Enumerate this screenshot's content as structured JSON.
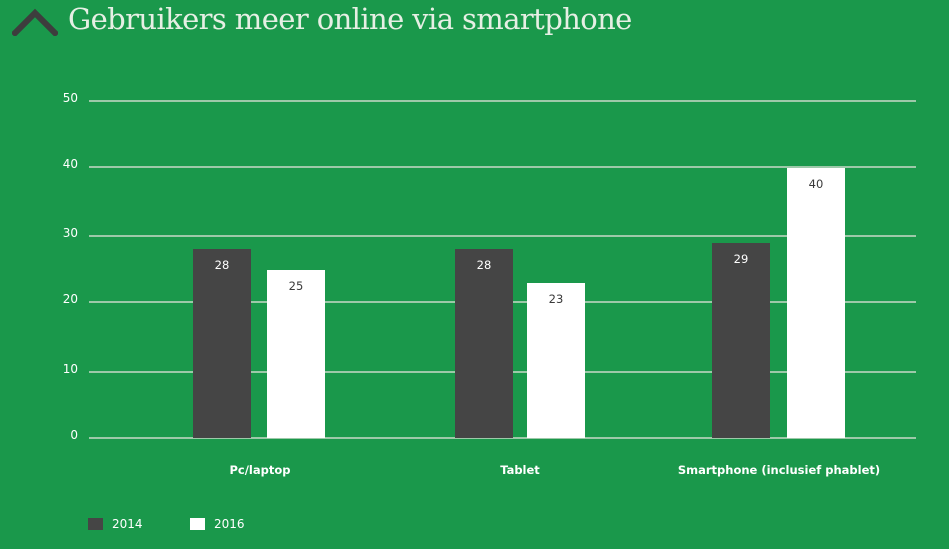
{
  "header": {
    "title": "Gebruikers meer online via smartphone",
    "icon": "chevron-up-icon"
  },
  "colors": {
    "background": "#1a984b",
    "series_2014": "#454545",
    "series_2016": "#ffffff",
    "gridline": "#9dc9a9",
    "icon": "#3d3d3d"
  },
  "chart_data": {
    "type": "bar",
    "title": "Gebruikers meer online via smartphone",
    "xlabel": "",
    "ylabel": "",
    "ylim": [
      0,
      50
    ],
    "yticks": [
      "50",
      "40",
      "30",
      "20",
      "10",
      "0"
    ],
    "grid": true,
    "legend_position": "bottom-left",
    "categories": [
      "Pc/laptop",
      "Tablet",
      "Smartphone (inclusief phablet)"
    ],
    "series": [
      {
        "name": "2014",
        "values": [
          28,
          28,
          29
        ],
        "color": "#454545"
      },
      {
        "name": "2016",
        "values": [
          25,
          23,
          40
        ],
        "color": "#ffffff"
      }
    ]
  },
  "legend": {
    "items": [
      {
        "label": "2014"
      },
      {
        "label": "2016"
      }
    ]
  }
}
